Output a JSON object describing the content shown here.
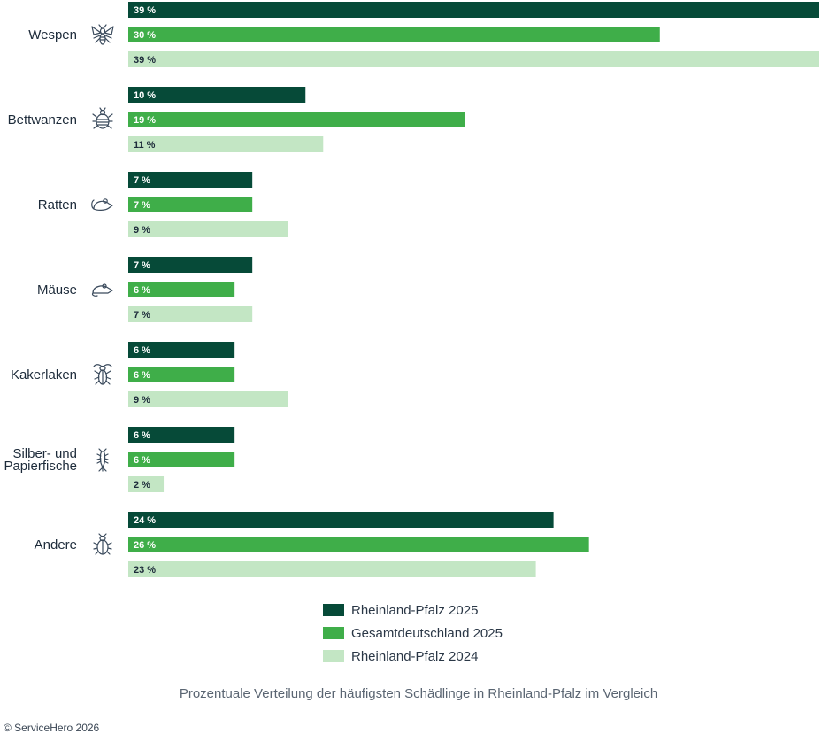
{
  "chart_data": {
    "type": "bar",
    "orientation": "horizontal",
    "categories": [
      "Wespen",
      "Bettwanzen",
      "Ratten",
      "Mäuse",
      "Kakerlaken",
      "Silber- und Papierfische",
      "Andere"
    ],
    "category_lines": [
      [
        "Wespen"
      ],
      [
        "Bettwanzen"
      ],
      [
        "Ratten"
      ],
      [
        "Mäuse"
      ],
      [
        "Kakerlaken"
      ],
      [
        "Silber- und",
        "Papierfische"
      ],
      [
        "Andere"
      ]
    ],
    "category_icons": [
      "wasp-icon",
      "bedbug-icon",
      "rat-icon",
      "mouse-icon",
      "cockroach-icon",
      "silverfish-icon",
      "beetle-icon"
    ],
    "series": [
      {
        "name": "Rheinland-Pfalz 2025",
        "color": "#064a38",
        "label_color": "#ffffff",
        "values": [
          39,
          10,
          7,
          7,
          6,
          6,
          24
        ]
      },
      {
        "name": "Gesamtdeutschland 2025",
        "color": "#3fae49",
        "label_color": "#ffffff",
        "values": [
          30,
          19,
          7,
          6,
          6,
          6,
          26
        ]
      },
      {
        "name": "Rheinland-Pfalz 2024",
        "color": "#c3e6c4",
        "label_color": "#1d2b3a",
        "values": [
          39,
          11,
          9,
          7,
          9,
          2,
          23
        ]
      }
    ],
    "value_labels": [
      [
        "39 %",
        "10 %",
        "7 %",
        "7 %",
        "6 %",
        "6 %",
        "24 %"
      ],
      [
        "30 %",
        "19 %",
        "7 %",
        "6 %",
        "6 %",
        "6 %",
        "26 %"
      ],
      [
        "39 %",
        "11 %",
        "9 %",
        "7 %",
        "9 %",
        "2 %",
        "23 %"
      ]
    ],
    "xlim": [
      0,
      39
    ],
    "legend_position": "bottom-center",
    "title": "Prozentuale Verteilung der häufigsten Schädlinge in Rheinland-Pfalz im Vergleich"
  },
  "caption": "Prozentuale Verteilung der häufigsten Schädlinge in Rheinland-Pfalz im Vergleich",
  "copyright": "© ServiceHero 2026"
}
